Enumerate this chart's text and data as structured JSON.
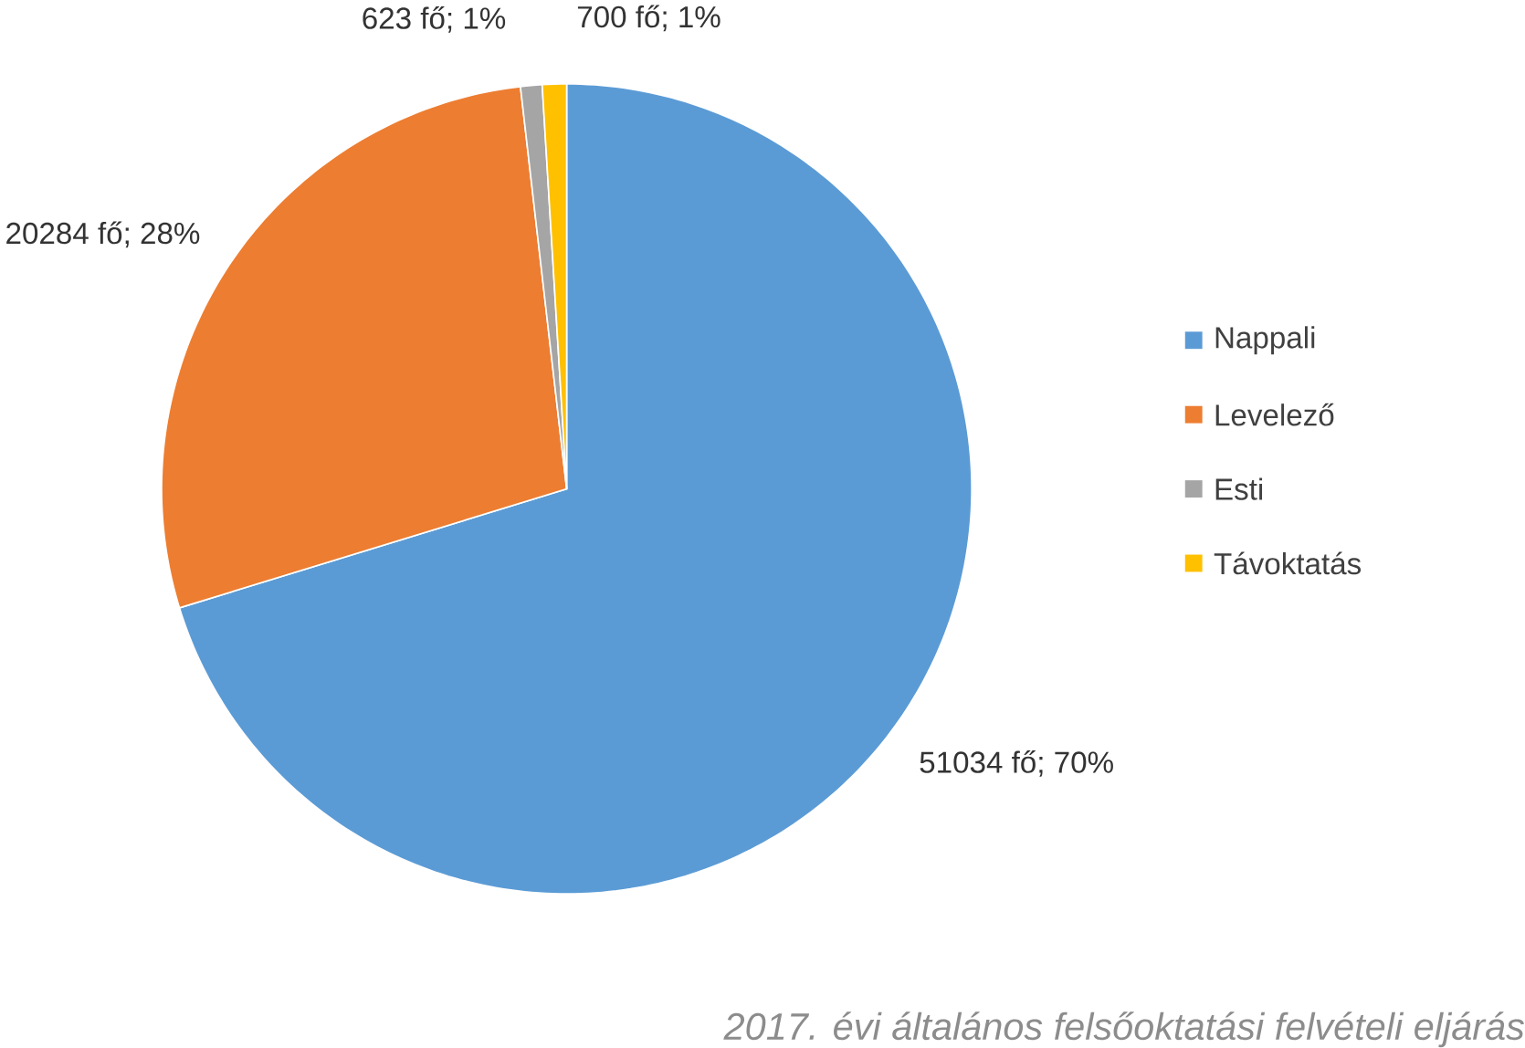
{
  "chart_data": {
    "type": "pie",
    "categories": [
      "Nappali",
      "Levelező",
      "Esti",
      "Távoktatás"
    ],
    "values": [
      51034,
      20284,
      623,
      700
    ],
    "value_labels": [
      "51034 fő; 70%",
      "20284 fő; 28%",
      "623 fő; 1%",
      "700 fő; 1%"
    ],
    "colors": [
      "#5b9bd5",
      "#ed7d31",
      "#a5a5a5",
      "#ffc000"
    ],
    "legend": "right",
    "annotations": [
      "2017. évi általános felsőoktatási felvételi eljárás"
    ]
  }
}
